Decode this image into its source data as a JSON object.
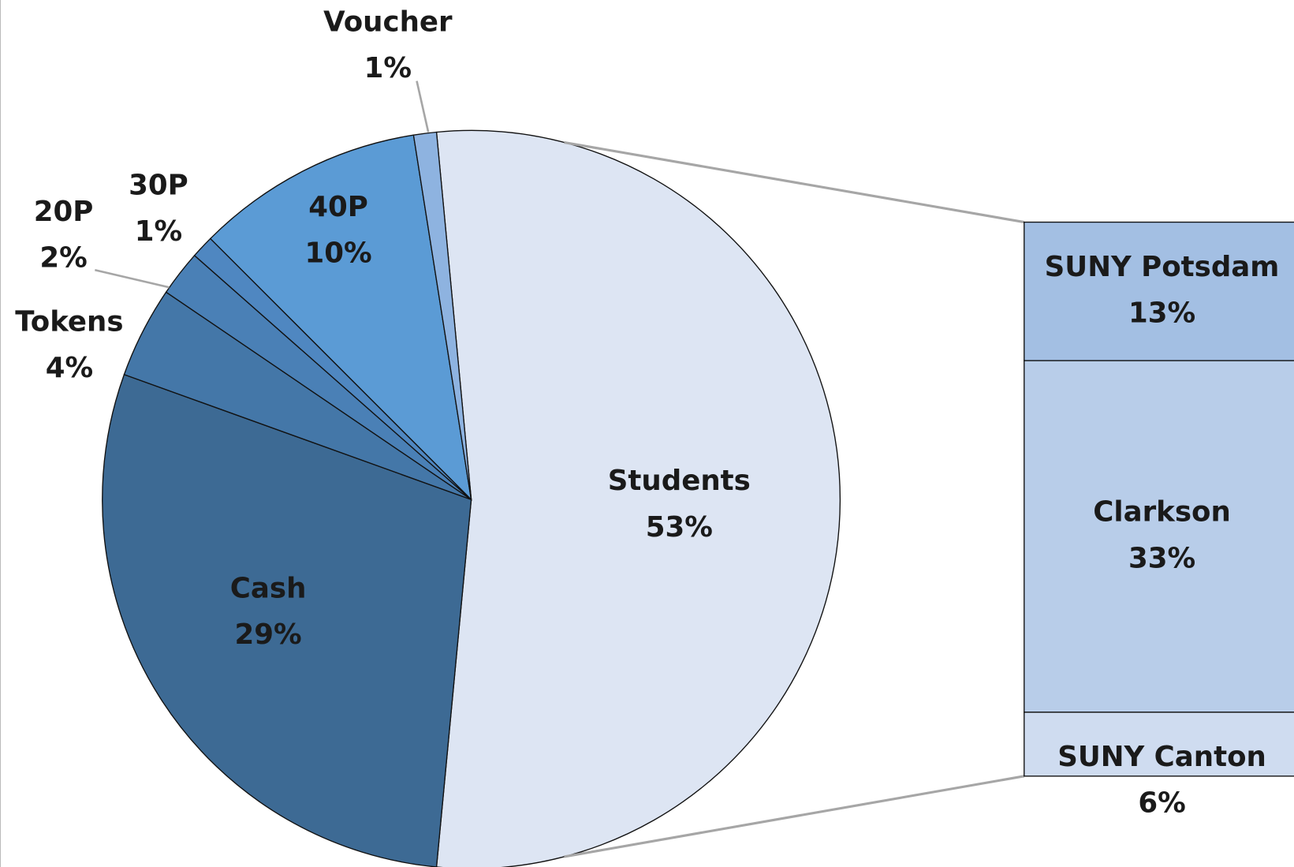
{
  "chart_data": {
    "type": "bar_of_pie",
    "categories": [
      "Students",
      "Cash",
      "Tokens",
      "20P",
      "30P",
      "40P",
      "Voucher"
    ],
    "values": [
      53,
      29,
      4,
      2,
      1,
      10,
      1
    ],
    "value_labels": [
      "53%",
      "29%",
      "4%",
      "2%",
      "1%",
      "10%",
      "1%"
    ],
    "colors": [
      "#dde5f3",
      "#3d6a94",
      "#4477a8",
      "#4a80b6",
      "#4f87c1",
      "#5b9bd5",
      "#8eb3e0"
    ],
    "bar": {
      "categories": [
        "SUNY Potsdam",
        "Clarkson",
        "SUNY Canton"
      ],
      "values": [
        13,
        33,
        6
      ],
      "value_labels": [
        "13%",
        "33%",
        "6%"
      ],
      "colors": [
        "#a3bfe3",
        "#b8cde9",
        "#cfdcf0"
      ]
    }
  }
}
